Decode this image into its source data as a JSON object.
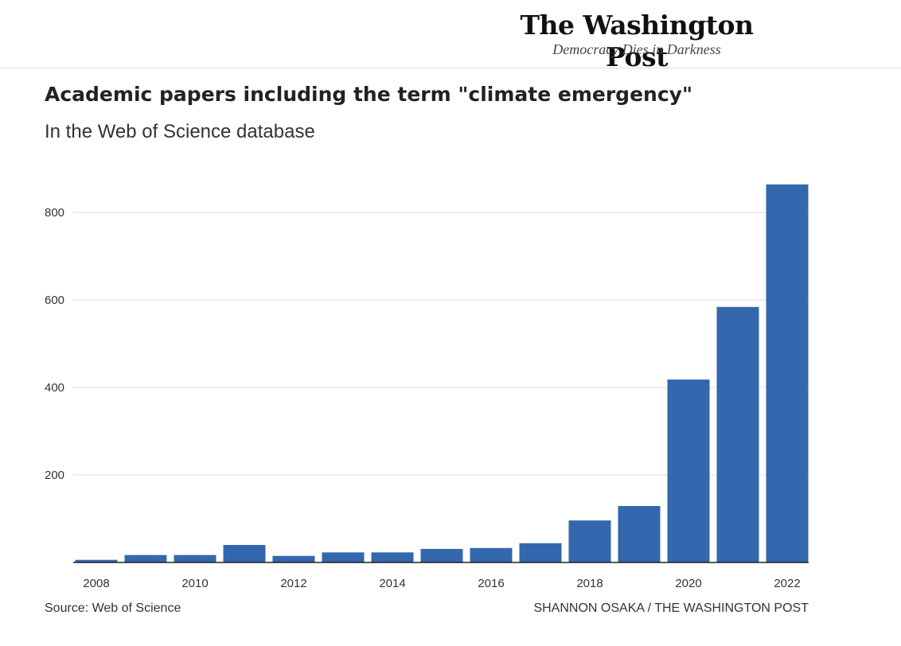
{
  "masthead": {
    "logo": "The Washington Post",
    "tagline": "Democracy Dies in Darkness"
  },
  "footer": {
    "source": "Source: Web of Science",
    "credit": "SHANNON OSAKA / THE WASHINGTON POST"
  },
  "colors": {
    "bar": "#3367ae",
    "grid": "#dddddd",
    "axis": "#222222"
  },
  "chart_data": {
    "type": "bar",
    "title": "Academic papers including the term \"climate emergency\"",
    "subtitle": "In the Web of Science database",
    "xlabel": "",
    "ylabel": "",
    "categories": [
      "2008",
      "2009",
      "2010",
      "2011",
      "2012",
      "2013",
      "2014",
      "2015",
      "2016",
      "2017",
      "2018",
      "2019",
      "2020",
      "2021",
      "2022"
    ],
    "values": [
      6,
      17,
      17,
      40,
      15,
      23,
      23,
      31,
      33,
      44,
      96,
      129,
      418,
      584,
      864
    ],
    "x_tick_labels": [
      "2008",
      "2010",
      "2012",
      "2014",
      "2016",
      "2018",
      "2020",
      "2022"
    ],
    "y_ticks": [
      200,
      400,
      600,
      800
    ],
    "y_tick_labels": [
      "200",
      "400",
      "600",
      "800"
    ],
    "ylim": [
      0,
      880
    ],
    "grid": true,
    "legend": "none"
  }
}
